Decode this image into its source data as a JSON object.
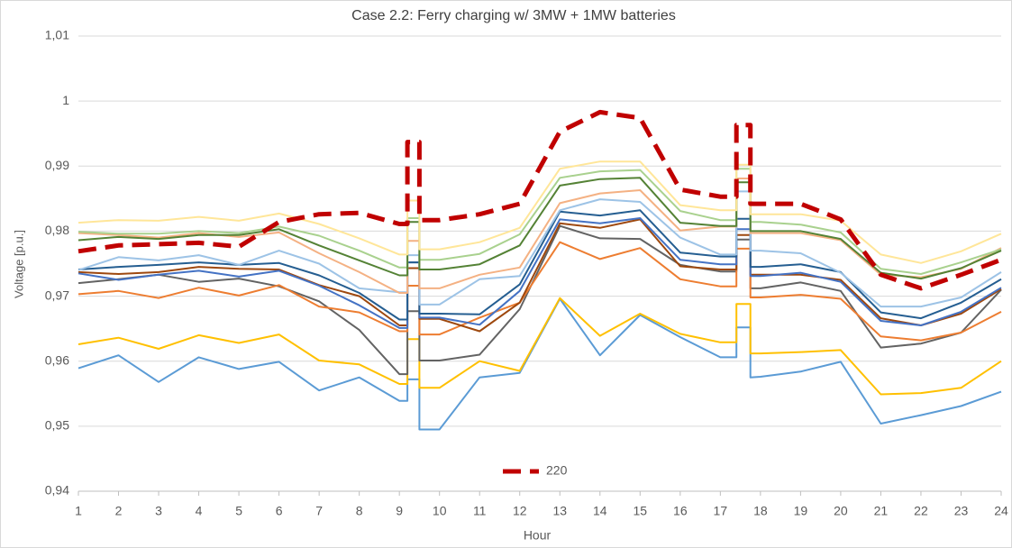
{
  "chart_data": {
    "type": "line",
    "title": "Case 2.2: Ferry  charging w/ 3MW + 1MW batteries",
    "x_label": "Hour",
    "y_label": "Voltage [p.u.]",
    "x": [
      1,
      2,
      3,
      4,
      5,
      6,
      7,
      8,
      9,
      9.2,
      9.2,
      9.5,
      9.5,
      10,
      11,
      12,
      13,
      14,
      15,
      16,
      17,
      17.4,
      17.4,
      17.75,
      17.75,
      18,
      19,
      20,
      21,
      22,
      23,
      24
    ],
    "xlim": [
      1,
      24
    ],
    "xticks": [
      1,
      2,
      3,
      4,
      5,
      6,
      7,
      8,
      9,
      10,
      11,
      12,
      13,
      14,
      15,
      16,
      17,
      18,
      19,
      20,
      21,
      22,
      23,
      24
    ],
    "ylim": [
      0.94,
      1.01
    ],
    "yticks": [
      {
        "value": 0.94,
        "label": "0,94"
      },
      {
        "value": 0.95,
        "label": "0,95"
      },
      {
        "value": 0.96,
        "label": "0,96"
      },
      {
        "value": 0.97,
        "label": "0,97"
      },
      {
        "value": 0.98,
        "label": "0,98"
      },
      {
        "value": 0.99,
        "label": "0,99"
      },
      1,
      {
        "value": 1.01,
        "label": "1,01"
      }
    ],
    "grid": true,
    "legend": "bottom",
    "series": [
      {
        "color": "#5b9bd5",
        "values": [
          0.9589,
          0.9609,
          0.9568,
          0.9606,
          0.9588,
          0.9599,
          0.9555,
          0.9575,
          0.9539,
          0.9539,
          0.9572,
          0.9572,
          0.9495,
          0.9495,
          0.9575,
          0.9582,
          0.9696,
          0.9609,
          0.9671,
          0.9637,
          0.9606,
          0.9606,
          0.9652,
          0.9652,
          0.9575,
          0.9576,
          0.9584,
          0.9599,
          0.9504,
          0.9517,
          0.9531,
          0.9553
        ]
      },
      {
        "color": "#ffc000",
        "values": [
          0.9626,
          0.9636,
          0.9619,
          0.964,
          0.9628,
          0.9641,
          0.9601,
          0.9595,
          0.9565,
          0.9565,
          0.9634,
          0.9634,
          0.9559,
          0.9559,
          0.96,
          0.9585,
          0.9697,
          0.9639,
          0.9673,
          0.9642,
          0.9629,
          0.9629,
          0.9688,
          0.9688,
          0.9612,
          0.9612,
          0.9614,
          0.9617,
          0.9549,
          0.9551,
          0.9559,
          0.96
        ]
      },
      {
        "color": "#636363",
        "values": [
          0.972,
          0.9726,
          0.9733,
          0.9722,
          0.9727,
          0.9715,
          0.9692,
          0.9648,
          0.958,
          0.958,
          0.9677,
          0.9677,
          0.9601,
          0.9601,
          0.961,
          0.968,
          0.9808,
          0.9789,
          0.9788,
          0.9748,
          0.9738,
          0.9738,
          0.9787,
          0.9787,
          0.9712,
          0.9712,
          0.9721,
          0.9708,
          0.9621,
          0.9627,
          0.9644,
          0.971
        ]
      },
      {
        "color": "#ed7d31",
        "values": [
          0.9703,
          0.9708,
          0.9697,
          0.9713,
          0.9701,
          0.9717,
          0.9684,
          0.9675,
          0.9646,
          0.9646,
          0.9716,
          0.9716,
          0.9641,
          0.9641,
          0.9667,
          0.969,
          0.9783,
          0.9757,
          0.9774,
          0.9726,
          0.9715,
          0.9715,
          0.9773,
          0.9773,
          0.9698,
          0.9698,
          0.9702,
          0.9696,
          0.9638,
          0.9632,
          0.9644,
          0.9676
        ]
      },
      {
        "color": "#9e480e",
        "values": [
          0.9737,
          0.9734,
          0.9737,
          0.9745,
          0.9742,
          0.9741,
          0.9717,
          0.97,
          0.9655,
          0.9655,
          0.9743,
          0.9743,
          0.9665,
          0.9665,
          0.9646,
          0.969,
          0.9812,
          0.9805,
          0.9818,
          0.9746,
          0.9741,
          0.9741,
          0.9794,
          0.9794,
          0.9733,
          0.9733,
          0.9733,
          0.9725,
          0.9666,
          0.9655,
          0.9673,
          0.9711
        ]
      },
      {
        "color": "#4472c4",
        "values": [
          0.9735,
          0.9725,
          0.9733,
          0.9739,
          0.973,
          0.9739,
          0.9716,
          0.9686,
          0.9651,
          0.9651,
          0.9752,
          0.9752,
          0.9667,
          0.9667,
          0.9656,
          0.9708,
          0.9818,
          0.9812,
          0.982,
          0.9756,
          0.9749,
          0.9749,
          0.9803,
          0.9803,
          0.9731,
          0.9731,
          0.9736,
          0.9722,
          0.9662,
          0.9655,
          0.9676,
          0.9713
        ]
      },
      {
        "color": "#255e91",
        "values": [
          0.9741,
          0.9745,
          0.9748,
          0.9752,
          0.9748,
          0.9751,
          0.9732,
          0.9705,
          0.9664,
          0.9664,
          0.9752,
          0.9752,
          0.9673,
          0.9673,
          0.9672,
          0.9718,
          0.983,
          0.9824,
          0.9832,
          0.9767,
          0.9761,
          0.9761,
          0.9819,
          0.9819,
          0.9745,
          0.9745,
          0.9749,
          0.9737,
          0.9675,
          0.9666,
          0.969,
          0.9726
        ]
      },
      {
        "color": "#9dc3e6",
        "values": [
          0.974,
          0.976,
          0.9755,
          0.9763,
          0.9748,
          0.977,
          0.975,
          0.9712,
          0.9706,
          0.9706,
          0.9763,
          0.9763,
          0.9687,
          0.9687,
          0.9726,
          0.9731,
          0.9832,
          0.9849,
          0.9845,
          0.979,
          0.9764,
          0.9764,
          0.9861,
          0.9861,
          0.977,
          0.977,
          0.9766,
          0.9736,
          0.9684,
          0.9684,
          0.9698,
          0.9737
        ]
      },
      {
        "color": "#f4b183",
        "values": [
          0.9797,
          0.9794,
          0.979,
          0.9797,
          0.9791,
          0.9798,
          0.9766,
          0.9737,
          0.9705,
          0.9705,
          0.9785,
          0.9785,
          0.9712,
          0.9712,
          0.9733,
          0.9744,
          0.9843,
          0.9858,
          0.9863,
          0.9801,
          0.9807,
          0.9807,
          0.9881,
          0.9881,
          0.9797,
          0.9797,
          0.9797,
          0.9786,
          0.9733,
          0.9729,
          0.9742,
          0.9774
        ]
      },
      {
        "color": "#a9d18e",
        "values": [
          0.9799,
          0.9796,
          0.9796,
          0.98,
          0.9797,
          0.9807,
          0.9793,
          0.977,
          0.9744,
          0.9744,
          0.982,
          0.982,
          0.9756,
          0.9756,
          0.9765,
          0.9795,
          0.9882,
          0.9892,
          0.9894,
          0.9831,
          0.9817,
          0.9817,
          0.9896,
          0.9896,
          0.9814,
          0.9814,
          0.981,
          0.9798,
          0.9742,
          0.9734,
          0.9752,
          0.9772
        ]
      },
      {
        "color": "#548235",
        "values": [
          0.9786,
          0.9791,
          0.9788,
          0.9794,
          0.9794,
          0.9803,
          0.9778,
          0.9755,
          0.9732,
          0.9732,
          0.9814,
          0.9814,
          0.9741,
          0.9741,
          0.9749,
          0.9778,
          0.987,
          0.988,
          0.9882,
          0.9813,
          0.9808,
          0.9808,
          0.9875,
          0.9875,
          0.98,
          0.98,
          0.98,
          0.9788,
          0.9736,
          0.9727,
          0.9743,
          0.977
        ]
      },
      {
        "color": "#ffe699",
        "values": [
          0.9813,
          0.9817,
          0.9816,
          0.9822,
          0.9816,
          0.9827,
          0.9811,
          0.9789,
          0.9764,
          0.9764,
          0.9847,
          0.9847,
          0.9772,
          0.9772,
          0.9783,
          0.9805,
          0.9896,
          0.9907,
          0.9907,
          0.984,
          0.9832,
          0.9832,
          0.9902,
          0.9902,
          0.9826,
          0.9826,
          0.9826,
          0.9816,
          0.9764,
          0.9751,
          0.9769,
          0.9796
        ]
      },
      {
        "name": "220",
        "color": "#c00000",
        "dashed": true,
        "values": [
          0.9769,
          0.9778,
          0.978,
          0.9782,
          0.9776,
          0.9814,
          0.9826,
          0.9828,
          0.9811,
          0.9811,
          0.9937,
          0.9937,
          0.9817,
          0.9817,
          0.9826,
          0.9842,
          0.9953,
          0.9983,
          0.9974,
          0.9864,
          0.9853,
          0.9853,
          0.9963,
          0.9963,
          0.9842,
          0.9842,
          0.9842,
          0.9818,
          0.9733,
          0.9712,
          0.9733,
          0.9756
        ]
      }
    ]
  }
}
